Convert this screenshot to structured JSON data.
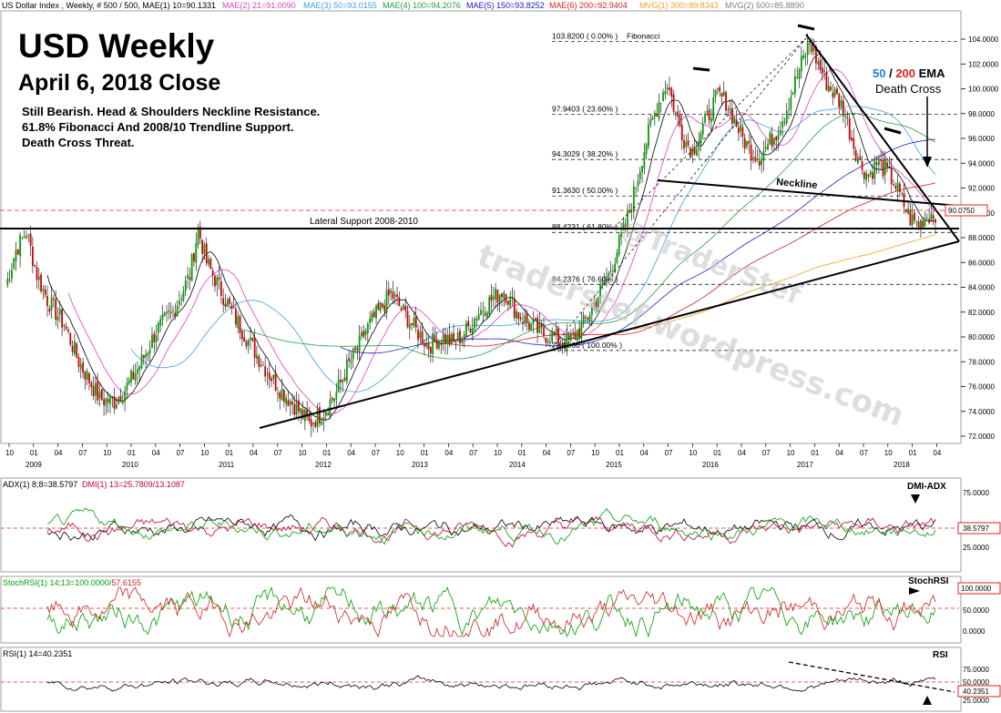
{
  "header": {
    "title": "US Dollar Index , Weekly, # 500 / 500, MAE(1) 10=90.1331",
    "mae2": "MAE(2) 21=91.0090",
    "mae3": "MAE(3) 50=93.0155",
    "mae4": "MAE(4) 100=94.2076",
    "mae5": "MAE(5) 150=93.8252",
    "mae6": "MAE(6) 200=92.9404",
    "mvg1": "MVG(1) 300=89.8343",
    "mvg2": "MVG(2) 500=85.8890"
  },
  "annotations": {
    "title_big": "USD Weekly",
    "date_big": "April 6, 2018 Close",
    "note1": "Still Bearish.  Head & Shoulders Neckline Resistance.",
    "note2": "61.8% Fibonacci  And 2008/10 Trendline Support.",
    "note3": "Death Cross Threat.",
    "ema_50": "50",
    "ema_sep": " / ",
    "ema_200": "200",
    "ema_suffix": " EMA",
    "death_cross": "Death Cross",
    "neckline": "Neckline",
    "lateral": "Lateral Support 2008-2010",
    "watermark": "traderstef.wordpress.com",
    "watermark2": "@TraderStef"
  },
  "colors": {
    "mae1": "#000000",
    "mae2": "#e040c0",
    "mae3": "#40a0e0",
    "mae4": "#20a040",
    "mae5": "#2020c0",
    "mae6": "#d02020",
    "mvg1": "#f0a020",
    "mvg2": "#808080",
    "up": "#00a000",
    "down": "#d00000",
    "dmi_plus": "#c00040",
    "dmi_minus": "#00a000"
  },
  "chart_data": [
    {
      "type": "candlestick",
      "title": "US Dollar Index , Weekly",
      "ylim": [
        71,
        105
      ],
      "y_ticks": [
        "72.0000",
        "74.0000",
        "76.0000",
        "78.0000",
        "80.0000",
        "82.0000",
        "84.0000",
        "86.0000",
        "88.0000",
        "90.0000",
        "92.0000",
        "94.0000",
        "96.0000",
        "98.0000",
        "100.0000",
        "102.0000",
        "104.0000"
      ],
      "x_month_labels": [
        "10",
        "01",
        "04",
        "07",
        "10",
        "01",
        "04",
        "07",
        "10",
        "01",
        "04",
        "07",
        "10",
        "01",
        "04",
        "07",
        "10",
        "01",
        "04",
        "07",
        "10",
        "01",
        "04",
        "07",
        "10",
        "01",
        "04",
        "07",
        "10",
        "01",
        "04",
        "07",
        "10",
        "01",
        "04",
        "07",
        "10",
        "01",
        "04"
      ],
      "x_year_labels": [
        "2009",
        "2010",
        "2011",
        "2012",
        "2013",
        "2014",
        "2015",
        "2016",
        "2017",
        "2018"
      ],
      "last_price": "90.0750",
      "fibonacci": [
        {
          "label": "103.8200 ( 0.00% )",
          "value": 103.82
        },
        {
          "label": "97.9403 ( 23.60% )",
          "value": 97.9403
        },
        {
          "label": "94.3029 ( 38.20% )",
          "value": 94.3029
        },
        {
          "label": "91.3630 ( 50.00% )",
          "value": 91.363
        },
        {
          "label": "88.4231 ( 61.80% )",
          "value": 88.4231
        },
        {
          "label": "84.2376 ( 76.60% )",
          "value": 84.2376
        },
        {
          "label": "78.9060 ( 100.00% )",
          "value": 78.906
        }
      ],
      "fib_name": "Fibonacci",
      "points": [
        [
          0,
          84
        ],
        [
          5,
          87
        ],
        [
          10,
          88.5
        ],
        [
          15,
          85
        ],
        [
          20,
          83
        ],
        [
          28,
          81
        ],
        [
          35,
          78
        ],
        [
          45,
          75
        ],
        [
          52,
          74.8
        ],
        [
          58,
          76
        ],
        [
          65,
          78
        ],
        [
          72,
          80.5
        ],
        [
          80,
          82
        ],
        [
          88,
          85
        ],
        [
          92,
          88.7
        ],
        [
          96,
          86
        ],
        [
          102,
          84
        ],
        [
          108,
          82
        ],
        [
          115,
          80
        ],
        [
          122,
          78
        ],
        [
          130,
          76
        ],
        [
          138,
          74.5
        ],
        [
          145,
          73
        ],
        [
          152,
          74
        ],
        [
          158,
          75.5
        ],
        [
          163,
          77.5
        ],
        [
          168,
          79
        ],
        [
          172,
          80.5
        ],
        [
          178,
          82
        ],
        [
          184,
          83.5
        ],
        [
          190,
          82
        ],
        [
          196,
          80.5
        ],
        [
          202,
          79.3
        ],
        [
          208,
          80
        ],
        [
          214,
          79.5
        ],
        [
          220,
          80.5
        ],
        [
          226,
          82
        ],
        [
          232,
          83
        ],
        [
          238,
          83.8
        ],
        [
          244,
          82
        ],
        [
          250,
          81
        ],
        [
          256,
          80.3
        ],
        [
          262,
          80
        ],
        [
          268,
          79.5
        ],
        [
          272,
          80.2
        ],
        [
          276,
          81
        ],
        [
          282,
          83
        ],
        [
          288,
          85
        ],
        [
          292,
          87
        ],
        [
          296,
          89
        ],
        [
          300,
          91.5
        ],
        [
          304,
          94.5
        ],
        [
          308,
          97
        ],
        [
          312,
          99
        ],
        [
          316,
          100.5
        ],
        [
          320,
          98
        ],
        [
          324,
          96
        ],
        [
          328,
          95
        ],
        [
          332,
          96.5
        ],
        [
          336,
          98
        ],
        [
          340,
          99.5
        ],
        [
          344,
          99
        ],
        [
          348,
          97.5
        ],
        [
          352,
          96
        ],
        [
          356,
          95
        ],
        [
          360,
          94.5
        ],
        [
          364,
          95.5
        ],
        [
          368,
          96.5
        ],
        [
          372,
          98
        ],
        [
          376,
          100
        ],
        [
          380,
          102
        ],
        [
          384,
          103.8
        ],
        [
          388,
          102
        ],
        [
          392,
          100.5
        ],
        [
          396,
          99.5
        ],
        [
          400,
          98.5
        ],
        [
          404,
          96
        ],
        [
          408,
          94
        ],
        [
          412,
          93
        ],
        [
          416,
          94
        ],
        [
          420,
          93.5
        ],
        [
          424,
          92.5
        ],
        [
          428,
          91
        ],
        [
          432,
          89.5
        ],
        [
          436,
          89
        ],
        [
          440,
          89.8
        ],
        [
          444,
          90
        ]
      ]
    },
    {
      "type": "line",
      "title": "ADX(1) 8;8=38.5797, DMI(1) 13=25.7809/13.1087",
      "adx_label": "ADX(1) 8;8=38.5797",
      "dmi_label": "DMI(1) 13=25.7809/13.1087",
      "y_ticks": [
        "75.0000",
        "25.0000"
      ],
      "last_value": "38.5797",
      "marker": "DMI-ADX"
    },
    {
      "type": "line",
      "title": "StochRSI(1) 14;13=100.0000/57.6155",
      "label_a": "StochRSI(1) 14;13=100.0000/",
      "label_b": "57.6155",
      "y_ticks": [
        "50.0000",
        "0.0000"
      ],
      "last_value": "100.0000",
      "marker": "StochRSI"
    },
    {
      "type": "line",
      "title": "RSI(1) 14=40.2351",
      "y_ticks": [
        "75.0000",
        "50.0000",
        "25.0000"
      ],
      "last_value": "40.2351",
      "marker": "RSI"
    }
  ]
}
